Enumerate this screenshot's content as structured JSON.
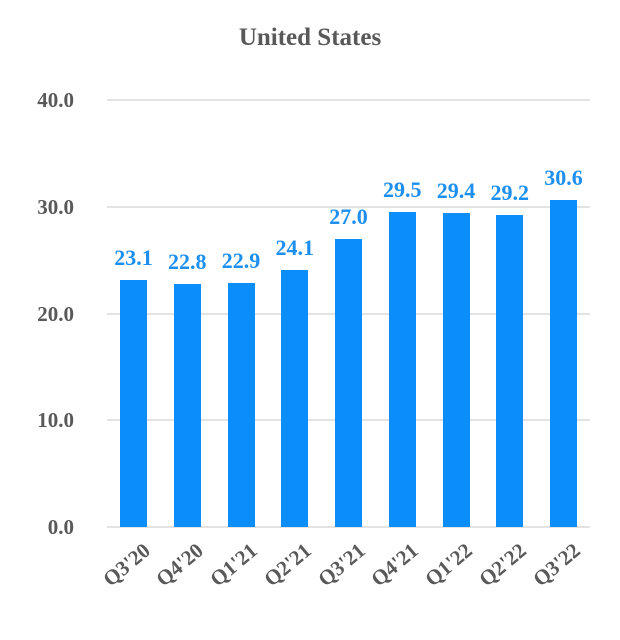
{
  "chart_data": {
    "type": "bar",
    "title": "United States",
    "xlabel": "",
    "ylabel": "",
    "categories": [
      "Q3'20",
      "Q4'20",
      "Q1'21",
      "Q2'21",
      "Q3'21",
      "Q4'21",
      "Q1'22",
      "Q2'22",
      "Q3'22"
    ],
    "values": [
      23.1,
      22.8,
      22.9,
      24.1,
      27.0,
      29.5,
      29.4,
      29.2,
      30.6
    ],
    "data_labels": [
      "23.1",
      "22.8",
      "22.9",
      "24.1",
      "27.0",
      "29.5",
      "29.4",
      "29.2",
      "30.6"
    ],
    "ylim": [
      0,
      40
    ],
    "yticks": [
      "0.0",
      "10.0",
      "20.0",
      "30.0",
      "40.0"
    ],
    "grid": true,
    "legend": null,
    "colors": {
      "bar": "#0b8ef9",
      "data_label": "#1c8ff0",
      "axis_text": "#595959",
      "grid": "#e3e3e3"
    }
  }
}
